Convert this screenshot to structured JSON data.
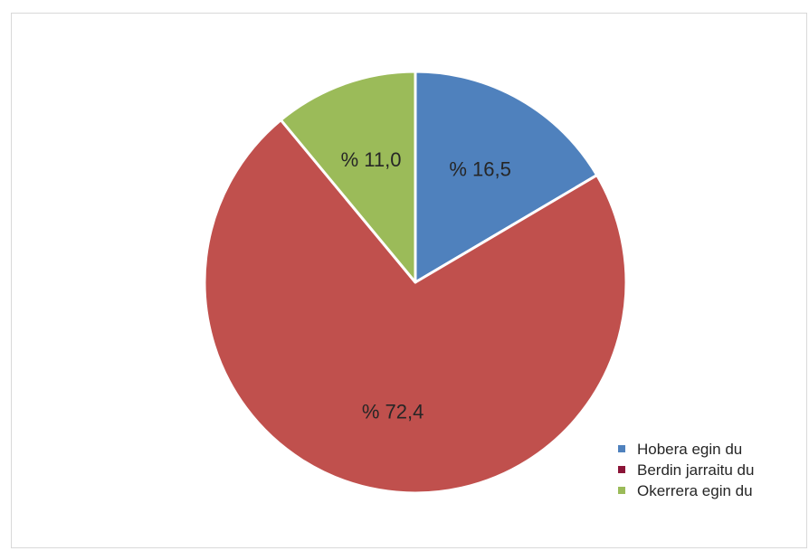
{
  "chart_data": {
    "type": "pie",
    "title": "",
    "slices": [
      {
        "label": "Hobera egin du",
        "value": 16.5,
        "display": "% 16,5",
        "color": "#4f81bd",
        "legend_color": "#4f81bd"
      },
      {
        "label": "Berdin jarraitu du",
        "value": 72.4,
        "display": "% 72,4",
        "color": "#c0504d",
        "legend_color": "#8b1538"
      },
      {
        "label": "Okerrera egin du",
        "value": 11.0,
        "display": "% 11,0",
        "color": "#9bbb59",
        "legend_color": "#9bbb59"
      }
    ],
    "start_angle_deg": 0,
    "direction": "clockwise",
    "legend_position": "bottom-right"
  }
}
